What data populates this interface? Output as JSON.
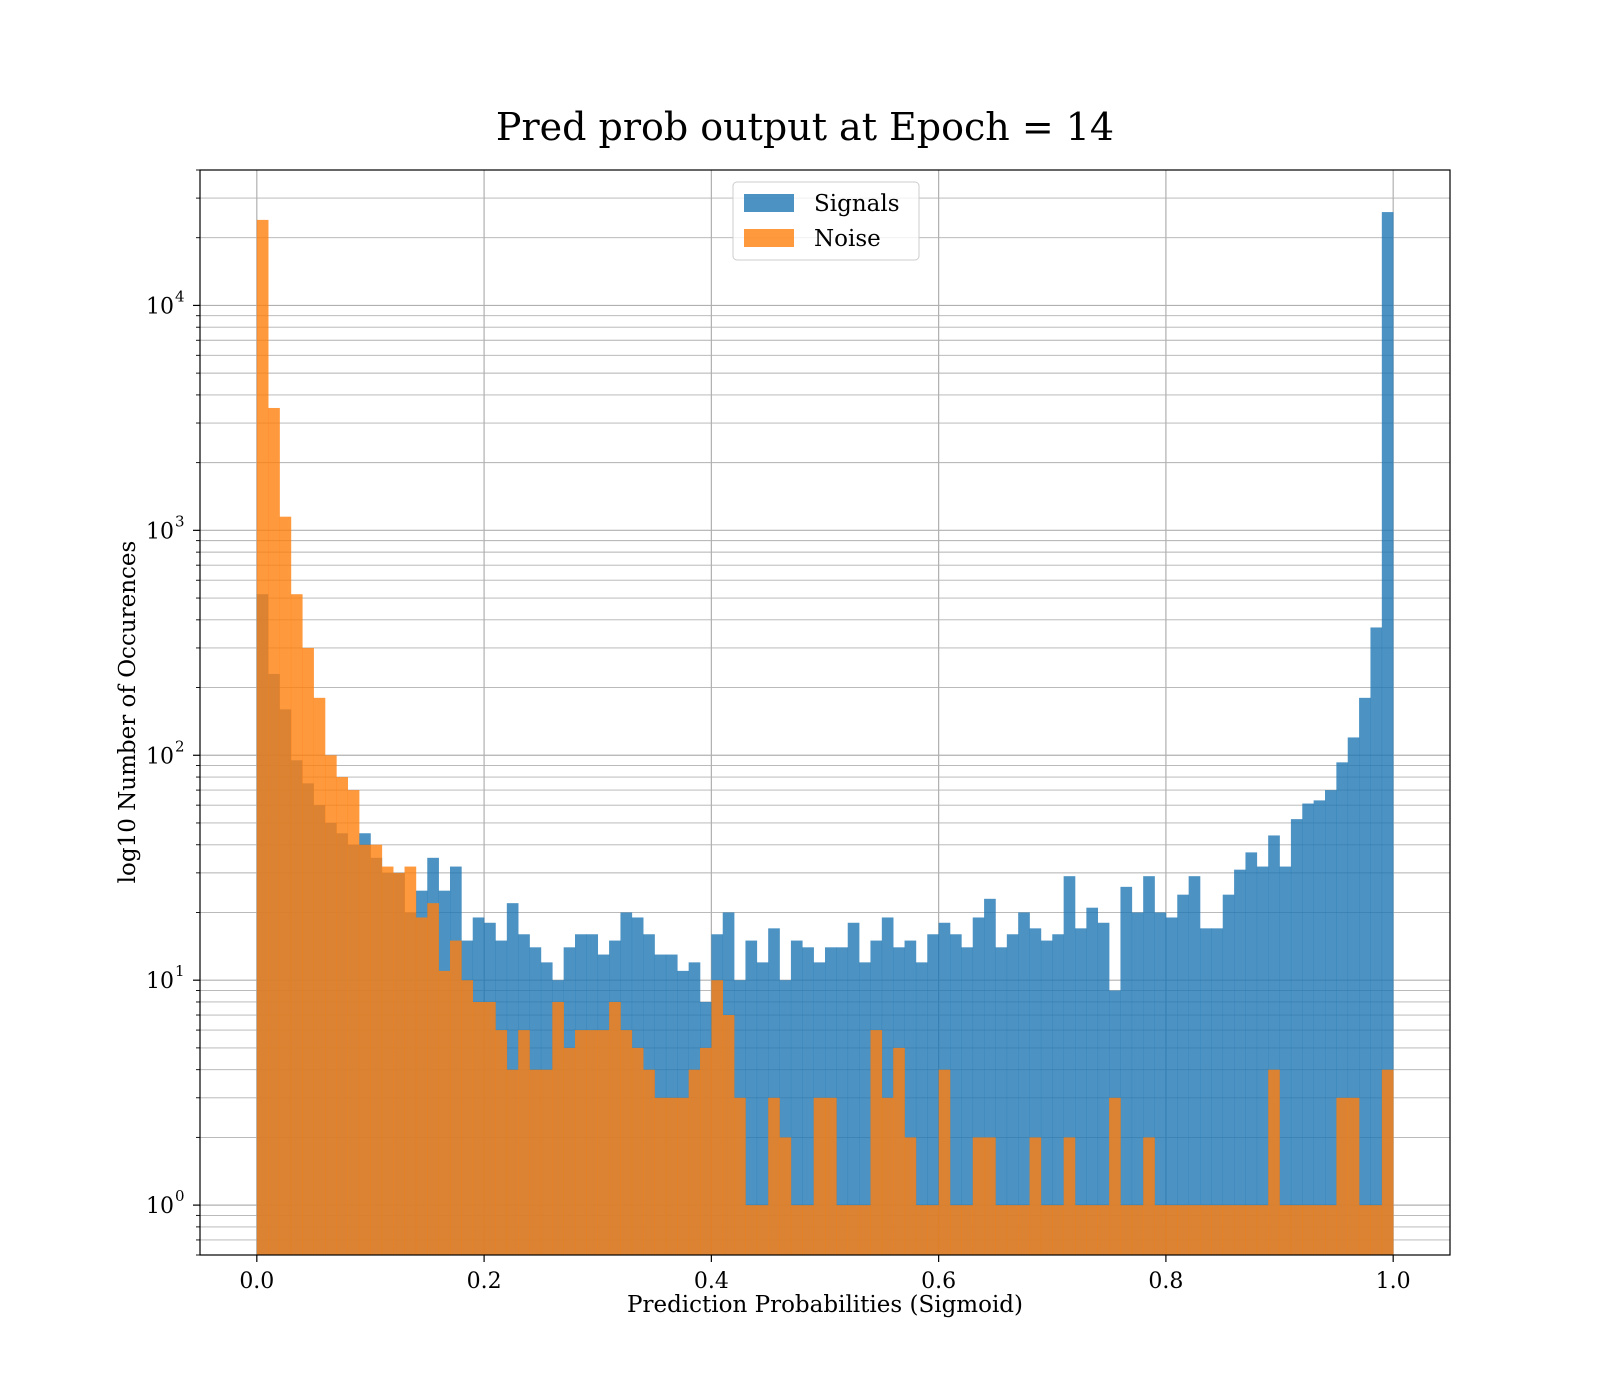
{
  "chart_data": {
    "type": "bar",
    "title": "Pred prob output at Epoch = 14",
    "xlabel": "Prediction Probabilities (Sigmoid)",
    "ylabel": "log10 Number of Occurences",
    "xlim": [
      -0.05,
      1.05
    ],
    "ylim": [
      0.6,
      40000
    ],
    "yscale": "log",
    "grid": true,
    "legend_position": "upper center",
    "bins": 100,
    "bin_range": [
      0.0,
      1.0
    ],
    "xticks": [
      {
        "value": 0.0,
        "label": "0.0"
      },
      {
        "value": 0.2,
        "label": "0.2"
      },
      {
        "value": 0.4,
        "label": "0.4"
      },
      {
        "value": 0.6,
        "label": "0.6"
      },
      {
        "value": 0.8,
        "label": "0.8"
      },
      {
        "value": 1.0,
        "label": "1.0"
      }
    ],
    "yticks": [
      {
        "value": 1,
        "base": "10",
        "exp": "0"
      },
      {
        "value": 10,
        "base": "10",
        "exp": "1"
      },
      {
        "value": 100,
        "base": "10",
        "exp": "2"
      },
      {
        "value": 1000,
        "base": "10",
        "exp": "3"
      },
      {
        "value": 10000,
        "base": "10",
        "exp": "4"
      }
    ],
    "series": [
      {
        "name": "Signals",
        "color": "#1f77b4",
        "values": [
          520,
          230,
          160,
          95,
          75,
          60,
          50,
          45,
          40,
          45,
          35,
          30,
          30,
          20,
          25,
          35,
          25,
          32,
          15,
          19,
          18,
          15,
          22,
          16,
          14,
          12,
          10,
          14,
          16,
          16,
          13,
          15,
          20,
          19,
          16,
          13,
          13,
          11,
          12,
          8,
          16,
          20,
          10,
          15,
          12,
          17,
          10,
          15,
          14,
          12,
          14,
          14,
          18,
          12,
          15,
          19,
          14,
          15,
          12,
          16,
          18,
          16,
          14,
          19,
          23,
          14,
          16,
          20,
          17,
          15,
          16,
          29,
          17,
          21,
          18,
          9,
          26,
          20,
          29,
          20,
          19,
          24,
          29,
          17,
          17,
          24,
          31,
          37,
          32,
          44,
          32,
          52,
          61,
          63,
          70,
          93,
          120,
          180,
          370,
          26000
        ]
      },
      {
        "name": "Noise",
        "color": "#ff7f0e",
        "values": [
          24000,
          3500,
          1150,
          520,
          300,
          180,
          100,
          80,
          70,
          40,
          40,
          32,
          30,
          32,
          19,
          22,
          11,
          15,
          10,
          8,
          8,
          6,
          4,
          6,
          4,
          4,
          8,
          5,
          6,
          6,
          6,
          8,
          6,
          5,
          4,
          3,
          3,
          3,
          4,
          5,
          10,
          7,
          3,
          1,
          1,
          3,
          2,
          1,
          1,
          3,
          3,
          1,
          1,
          1,
          6,
          3,
          5,
          2,
          1,
          1,
          4,
          1,
          1,
          2,
          2,
          1,
          1,
          1,
          2,
          1,
          1,
          2,
          1,
          1,
          1,
          3,
          1,
          1,
          2,
          1,
          1,
          1,
          1,
          1,
          1,
          1,
          1,
          1,
          1,
          4,
          1,
          1,
          1,
          1,
          1,
          3,
          3,
          1,
          1,
          4
        ]
      }
    ]
  }
}
